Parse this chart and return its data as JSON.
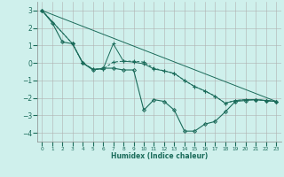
{
  "bg_color": "#cff0ec",
  "grid_color": "#b0b0b0",
  "line_color": "#1a6b5a",
  "xlabel": "Humidex (Indice chaleur)",
  "xlim": [
    -0.5,
    23.5
  ],
  "ylim": [
    -4.5,
    3.5
  ],
  "yticks": [
    -4,
    -3,
    -2,
    -1,
    0,
    1,
    2,
    3
  ],
  "xticks": [
    0,
    1,
    2,
    3,
    4,
    5,
    6,
    7,
    8,
    9,
    10,
    11,
    12,
    13,
    14,
    15,
    16,
    17,
    18,
    19,
    20,
    21,
    22,
    23
  ],
  "series": [
    {
      "x": [
        0,
        1,
        2,
        3,
        4,
        5,
        6,
        7,
        8,
        9,
        10,
        11,
        12,
        13,
        14,
        15,
        16,
        17,
        18,
        19,
        20,
        21,
        22,
        23
      ],
      "y": [
        3.0,
        2.3,
        1.2,
        1.1,
        0.0,
        -0.4,
        -0.3,
        -0.3,
        -0.4,
        -0.4,
        -2.7,
        -2.1,
        -2.2,
        -2.7,
        -3.9,
        -3.9,
        -3.5,
        -3.35,
        -2.8,
        -2.2,
        -2.15,
        -2.1,
        -2.15,
        -2.2
      ],
      "marker": "D",
      "markersize": 2.0,
      "linestyle": "-",
      "linewidth": 0.8
    },
    {
      "x": [
        0,
        3,
        4,
        5,
        6,
        7,
        8,
        9,
        10,
        11,
        12,
        13,
        14,
        15,
        16,
        17,
        18,
        19,
        20,
        21,
        22,
        23
      ],
      "y": [
        3.0,
        1.1,
        0.0,
        -0.35,
        -0.35,
        1.1,
        0.1,
        0.05,
        -0.05,
        -0.35,
        -0.45,
        -0.6,
        -1.0,
        -1.35,
        -1.6,
        -1.9,
        -2.3,
        -2.15,
        -2.1,
        -2.1,
        -2.15,
        -2.2
      ],
      "marker": "+",
      "markersize": 3.5,
      "linestyle": "-",
      "linewidth": 0.7
    },
    {
      "x": [
        0,
        3,
        4,
        5,
        6,
        7,
        8,
        9,
        10,
        11,
        12,
        13,
        14,
        15,
        16,
        17,
        18,
        19,
        20,
        21,
        22,
        23
      ],
      "y": [
        3.0,
        1.1,
        0.0,
        -0.35,
        -0.35,
        0.05,
        0.1,
        0.1,
        0.05,
        -0.3,
        -0.45,
        -0.6,
        -1.0,
        -1.35,
        -1.6,
        -1.9,
        -2.3,
        -2.15,
        -2.1,
        -2.1,
        -2.15,
        -2.2
      ],
      "marker": "+",
      "markersize": 3.5,
      "linestyle": "--",
      "linewidth": 0.7,
      "dashes": [
        3,
        2
      ]
    },
    {
      "x": [
        0,
        23
      ],
      "y": [
        3.0,
        -2.2
      ],
      "marker": null,
      "markersize": 0,
      "linestyle": "-",
      "linewidth": 0.7
    }
  ]
}
